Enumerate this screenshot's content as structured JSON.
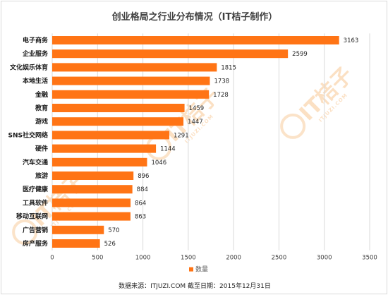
{
  "title": "创业格局之行业分布情况（IT桔子制作）",
  "source_note": "数据来源：ITJUZI.COM  截至日期：2015年12月31日",
  "watermark": {
    "brand": "IT桔子",
    "site": "ITJUZI.COM"
  },
  "colors": {
    "bar": "#ff7415",
    "grid": "#d9d9d9",
    "watermark": "#f3a24d"
  },
  "chart_data": {
    "type": "bar",
    "orientation": "horizontal",
    "categories": [
      "电子商务",
      "企业服务",
      "文化娱乐体育",
      "本地生活",
      "金融",
      "教育",
      "游戏",
      "SNS社交网络",
      "硬件",
      "汽车交通",
      "旅游",
      "医疗健康",
      "工具软件",
      "移动互联网",
      "广告营销",
      "房产服务"
    ],
    "series": [
      {
        "name": "数量",
        "values": [
          3163,
          2599,
          1815,
          1738,
          1728,
          1459,
          1447,
          1291,
          1144,
          1046,
          896,
          884,
          864,
          863,
          570,
          526
        ]
      }
    ],
    "xlim": [
      0,
      3500
    ],
    "xticks": [
      0,
      500,
      1000,
      1500,
      2000,
      2500,
      3000,
      3500
    ],
    "grid": true,
    "legend": "bottom"
  }
}
